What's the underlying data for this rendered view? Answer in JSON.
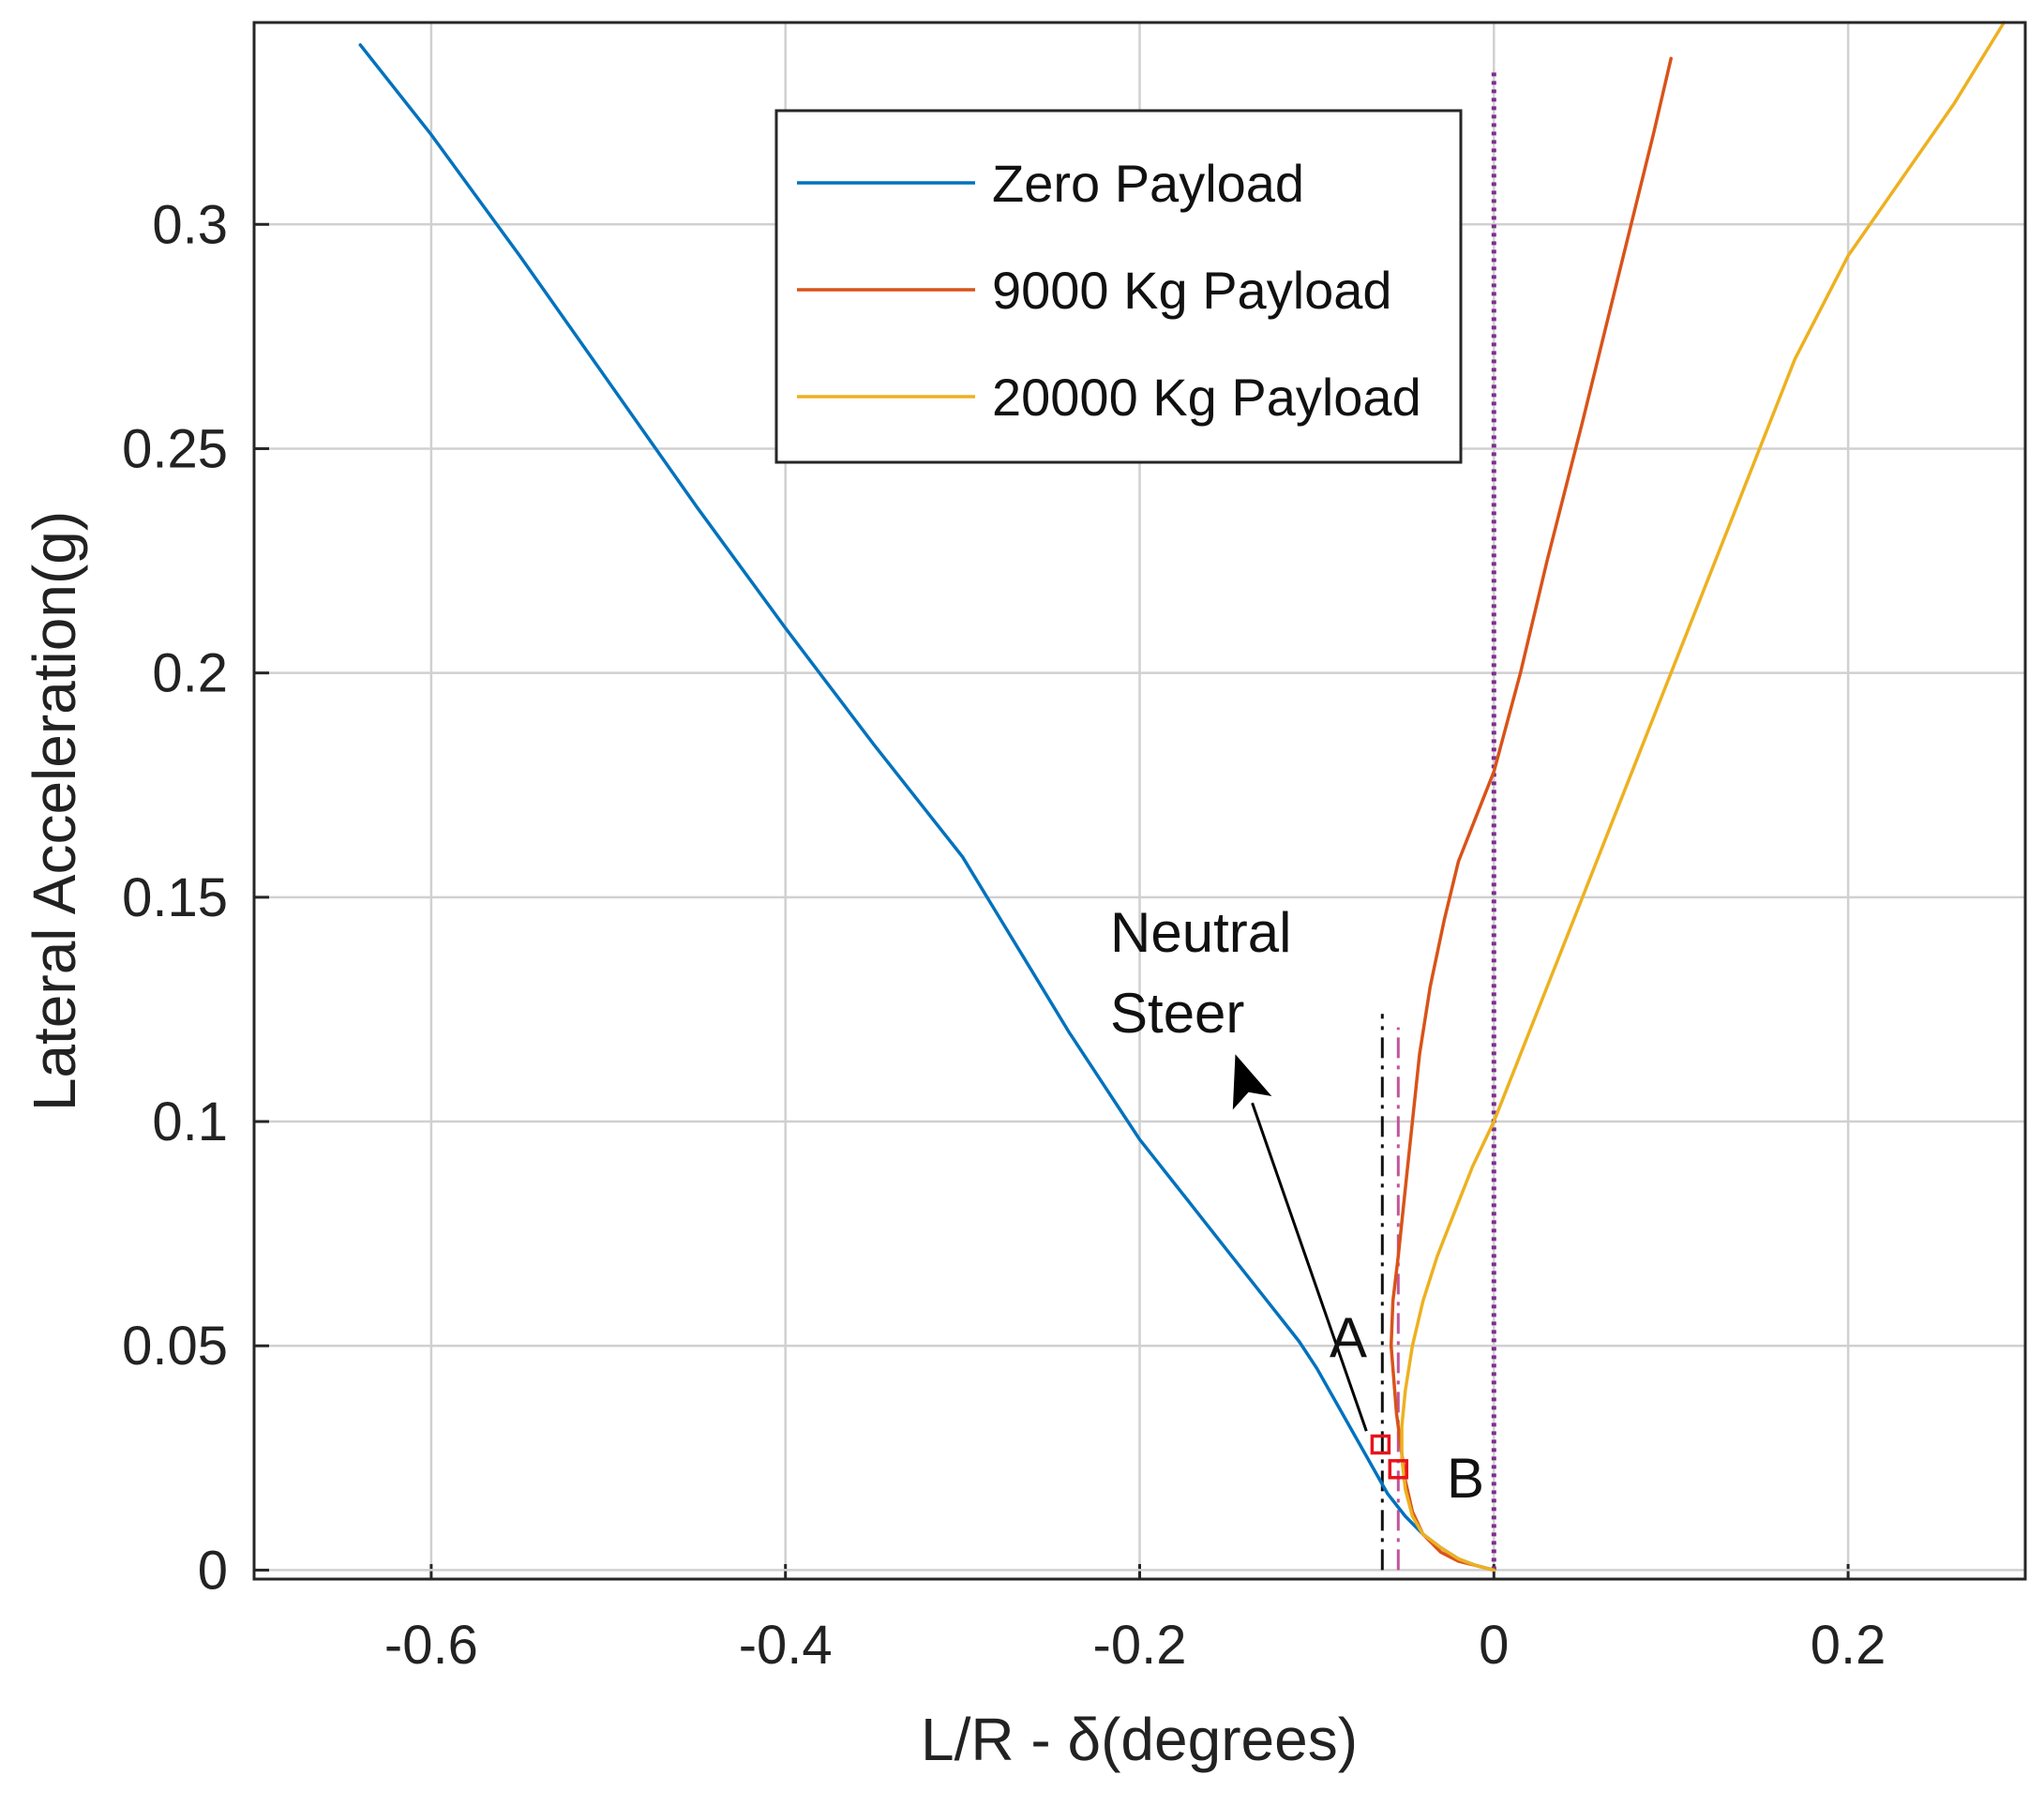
{
  "chart_data": {
    "type": "line",
    "xlabel": "L/R - δ(degrees)",
    "ylabel": "Lateral Acceleration(g)",
    "xlim": [
      -0.7,
      0.3
    ],
    "ylim": [
      -0.002,
      0.345
    ],
    "grid": true,
    "legend_position": "top-center",
    "x_ticks": [
      -0.6,
      -0.4,
      -0.2,
      0,
      0.2
    ],
    "x_tick_labels": [
      "-0.6",
      "-0.4",
      "-0.2",
      "0",
      "0.2"
    ],
    "y_ticks": [
      0,
      0.05,
      0.1,
      0.15,
      0.2,
      0.25,
      0.3
    ],
    "y_tick_labels": [
      "0",
      "0.05",
      "0.1",
      "0.15",
      "0.2",
      "0.25",
      "0.3"
    ],
    "series": [
      {
        "name": "Zero Payload",
        "color": "#0072BD",
        "points": [
          [
            0,
            0
          ],
          [
            -0.01,
            0.001
          ],
          [
            -0.02,
            0.0025
          ],
          [
            -0.03,
            0.005
          ],
          [
            -0.04,
            0.008
          ],
          [
            -0.05,
            0.012
          ],
          [
            -0.06,
            0.017
          ],
          [
            -0.07,
            0.024
          ],
          [
            -0.08,
            0.031
          ],
          [
            -0.09,
            0.038
          ],
          [
            -0.1,
            0.045
          ],
          [
            -0.11,
            0.051
          ],
          [
            -0.12,
            0.056
          ],
          [
            -0.13,
            0.061
          ],
          [
            -0.14,
            0.066
          ],
          [
            -0.15,
            0.071
          ],
          [
            -0.16,
            0.076
          ],
          [
            -0.17,
            0.081
          ],
          [
            -0.18,
            0.086
          ],
          [
            -0.19,
            0.091
          ],
          [
            -0.2,
            0.096
          ],
          [
            -0.21,
            0.102
          ],
          [
            -0.22,
            0.108
          ],
          [
            -0.24,
            0.12
          ],
          [
            -0.26,
            0.133
          ],
          [
            -0.28,
            0.146
          ],
          [
            -0.3,
            0.159
          ],
          [
            -0.35,
            0.184
          ],
          [
            -0.4,
            0.21
          ],
          [
            -0.45,
            0.237
          ],
          [
            -0.5,
            0.265
          ],
          [
            -0.55,
            0.293
          ],
          [
            -0.6,
            0.32
          ],
          [
            -0.64,
            0.34
          ]
        ]
      },
      {
        "name": "9000 Kg Payload",
        "color": "#D95319",
        "points": [
          [
            0,
            0
          ],
          [
            -0.01,
            0.001
          ],
          [
            -0.02,
            0.002
          ],
          [
            -0.03,
            0.004
          ],
          [
            -0.04,
            0.008
          ],
          [
            -0.046,
            0.013
          ],
          [
            -0.05,
            0.02
          ],
          [
            -0.055,
            0.035
          ],
          [
            -0.058,
            0.05
          ],
          [
            -0.057,
            0.06
          ],
          [
            -0.054,
            0.07
          ],
          [
            -0.05,
            0.085
          ],
          [
            -0.046,
            0.1
          ],
          [
            -0.042,
            0.115
          ],
          [
            -0.036,
            0.13
          ],
          [
            -0.028,
            0.145
          ],
          [
            -0.02,
            0.158
          ],
          [
            -0.01,
            0.168
          ],
          [
            0,
            0.178
          ],
          [
            0.015,
            0.2
          ],
          [
            0.03,
            0.225
          ],
          [
            0.05,
            0.256
          ],
          [
            0.07,
            0.288
          ],
          [
            0.09,
            0.32
          ],
          [
            0.1,
            0.337
          ]
        ]
      },
      {
        "name": "20000 Kg Payload",
        "color": "#EDB120",
        "points": [
          [
            0,
            0
          ],
          [
            -0.01,
            0.001
          ],
          [
            -0.02,
            0.0025
          ],
          [
            -0.03,
            0.005
          ],
          [
            -0.04,
            0.008
          ],
          [
            -0.046,
            0.012
          ],
          [
            -0.05,
            0.018
          ],
          [
            -0.052,
            0.025
          ],
          [
            -0.052,
            0.032
          ],
          [
            -0.05,
            0.04
          ],
          [
            -0.046,
            0.05
          ],
          [
            -0.04,
            0.06
          ],
          [
            -0.032,
            0.07
          ],
          [
            -0.022,
            0.08
          ],
          [
            -0.012,
            0.09
          ],
          [
            0,
            0.1
          ],
          [
            0.02,
            0.12
          ],
          [
            0.05,
            0.15
          ],
          [
            0.08,
            0.18
          ],
          [
            0.11,
            0.21
          ],
          [
            0.14,
            0.24
          ],
          [
            0.17,
            0.27
          ],
          [
            0.2,
            0.293
          ],
          [
            0.23,
            0.31
          ],
          [
            0.26,
            0.327
          ],
          [
            0.288,
            0.345
          ]
        ]
      }
    ],
    "reference_lines": [
      {
        "name": "neutral-steer-line-a",
        "x": -0.063,
        "y_range": [
          0,
          0.124
        ],
        "color": "#111111",
        "style": "dashdot"
      },
      {
        "name": "neutral-steer-line-b",
        "x": -0.054,
        "y_range": [
          0,
          0.121
        ],
        "color": "#C0559A",
        "style": "dashdot"
      },
      {
        "name": "zero-line",
        "x": 0,
        "y_range": [
          0,
          0.334
        ],
        "color": "#7E2F8E",
        "style": "dotted"
      }
    ],
    "markers": [
      {
        "name": "A",
        "x": -0.064,
        "y": 0.028,
        "color": "#E8141B"
      },
      {
        "name": "B",
        "x": -0.054,
        "y": 0.0225,
        "color": "#E8141B"
      }
    ],
    "annotations": {
      "neutral_steer_line1": "Neutral",
      "neutral_steer_line2": "Steer",
      "label_a": "A",
      "label_b": "B",
      "arrow_from": [
        -0.072,
        0.031
      ],
      "arrow_to": [
        -0.146,
        0.115
      ]
    }
  }
}
